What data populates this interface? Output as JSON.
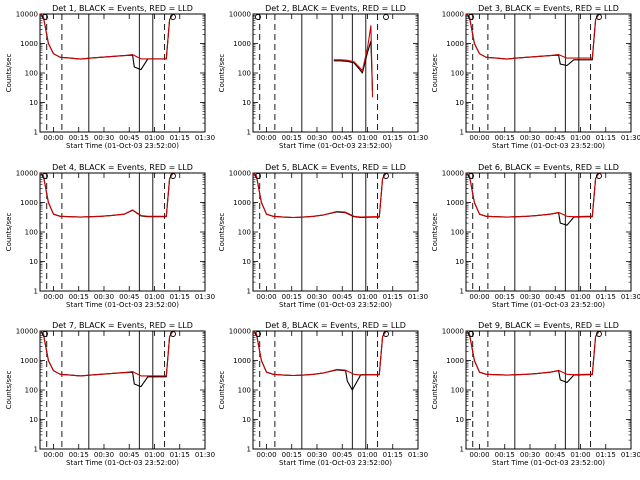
{
  "chart_data": {
    "type": "line",
    "layout": "3x3 grid",
    "xlabel": "Start Time (01-Oct-03 23:52:00)",
    "ylabel": "Counts/sec",
    "y_scale": "log",
    "ylim": [
      1,
      10000
    ],
    "y_ticks": [
      "1",
      "10",
      "100",
      "1000",
      "10000"
    ],
    "xlim_minutes": [
      0,
      98
    ],
    "x_ticks": [
      {
        "minute": 8,
        "label": "00:00"
      },
      {
        "minute": 23,
        "label": "00:15"
      },
      {
        "minute": 38,
        "label": "00:30"
      },
      {
        "minute": 53,
        "label": "00:45"
      },
      {
        "minute": 68,
        "label": "01:00"
      },
      {
        "minute": 83,
        "label": "01:15"
      },
      {
        "minute": 98,
        "label": "01:30"
      }
    ],
    "series_legend": {
      "black": "Events",
      "red": "LLD"
    },
    "colors": {
      "events": "#000000",
      "lld": "#cc0000"
    },
    "panels": [
      {
        "title": "Det 1, BLACK = Events, RED = LLD",
        "dip": true,
        "dashed_minutes": [
          4,
          13,
          74
        ],
        "solid_minutes": [
          29,
          59,
          67
        ],
        "saa_markers": true,
        "series": [
          {
            "name": "Events",
            "x": [
              0,
              2,
              5,
              8,
              12,
              18,
              24,
              30,
              36,
              42,
              50,
              55,
              56,
              60,
              64,
              72,
              75,
              77,
              79
            ],
            "y": [
              10000,
              8000,
              1000,
              450,
              340,
              320,
              295,
              320,
              340,
              360,
              390,
              400,
              160,
              130,
              300,
              300,
              300,
              6500,
              10000
            ]
          },
          {
            "name": "LLD",
            "x": [
              0,
              2,
              5,
              8,
              12,
              18,
              24,
              30,
              36,
              42,
              50,
              55,
              60,
              64,
              72,
              75,
              77,
              79
            ],
            "y": [
              10000,
              8000,
              1000,
              450,
              340,
              320,
              295,
              320,
              340,
              360,
              390,
              420,
              300,
              300,
              300,
              300,
              6500,
              10000
            ]
          }
        ]
      },
      {
        "title": "Det 2, BLACK = Events, RED = LLD",
        "dip": false,
        "dashed_minutes": [
          4,
          13,
          74
        ],
        "solid_minutes": [
          29,
          47,
          59,
          67
        ],
        "saa_markers": true,
        "series": [
          {
            "name": "Events",
            "x": [
              48,
              52,
              56,
              60,
              63,
              65,
              68,
              70,
              71
            ],
            "y": [
              260,
              260,
              250,
              220,
              140,
              100,
              500,
              1200,
              25
            ]
          },
          {
            "name": "LLD",
            "x": [
              48,
              52,
              56,
              60,
              63,
              65,
              68,
              70,
              71
            ],
            "y": [
              280,
              280,
              270,
              240,
              160,
              120,
              700,
              4000,
              15
            ]
          }
        ]
      },
      {
        "title": "Det 3, BLACK = Events, RED = LLD",
        "dip": true,
        "dashed_minutes": [
          4,
          13,
          74
        ],
        "solid_minutes": [
          29,
          59,
          67
        ],
        "saa_markers": true,
        "series": [
          {
            "name": "Events",
            "x": [
              0,
              2,
              5,
              8,
              12,
              18,
              24,
              30,
              36,
              42,
              50,
              55,
              56,
              60,
              64,
              72,
              75,
              77,
              79
            ],
            "y": [
              10000,
              8000,
              1000,
              450,
              340,
              320,
              295,
              320,
              340,
              360,
              390,
              400,
              200,
              180,
              280,
              280,
              280,
              6500,
              10000
            ]
          },
          {
            "name": "LLD",
            "x": [
              0,
              2,
              5,
              8,
              12,
              18,
              24,
              30,
              36,
              42,
              50,
              55,
              60,
              64,
              72,
              75,
              77,
              79
            ],
            "y": [
              10000,
              8000,
              1000,
              450,
              340,
              320,
              295,
              320,
              340,
              360,
              390,
              420,
              320,
              320,
              320,
              320,
              6500,
              10000
            ]
          }
        ]
      },
      {
        "title": "Det 4, BLACK = Events, RED = LLD",
        "dip": false,
        "dashed_minutes": [
          4,
          13,
          74
        ],
        "solid_minutes": [
          29,
          59,
          67
        ],
        "saa_markers": true,
        "series": [
          {
            "name": "Events",
            "x": [
              0,
              2,
              5,
              8,
              12,
              18,
              24,
              30,
              36,
              42,
              50,
              55,
              60,
              64,
              72,
              75,
              77,
              79
            ],
            "y": [
              10000,
              8000,
              1000,
              400,
              340,
              330,
              320,
              330,
              340,
              360,
              400,
              550,
              350,
              330,
              330,
              330,
              6500,
              10000
            ]
          },
          {
            "name": "LLD",
            "x": [
              0,
              2,
              5,
              8,
              12,
              18,
              24,
              30,
              36,
              42,
              50,
              55,
              60,
              64,
              72,
              75,
              77,
              79
            ],
            "y": [
              10000,
              8000,
              1000,
              400,
              340,
              330,
              320,
              330,
              340,
              360,
              400,
              560,
              360,
              340,
              340,
              340,
              6500,
              10000
            ]
          }
        ]
      },
      {
        "title": "Det 5, BLACK = Events, RED = LLD",
        "dip": false,
        "dashed_minutes": [
          4,
          13,
          74
        ],
        "solid_minutes": [
          29,
          59,
          67
        ],
        "saa_markers": true,
        "series": [
          {
            "name": "Events",
            "x": [
              0,
              2,
              5,
              8,
              12,
              18,
              24,
              30,
              36,
              42,
              50,
              55,
              60,
              64,
              72,
              75,
              77,
              79
            ],
            "y": [
              10000,
              8000,
              1000,
              400,
              340,
              320,
              310,
              320,
              340,
              380,
              480,
              450,
              330,
              310,
              320,
              320,
              6500,
              10000
            ]
          },
          {
            "name": "LLD",
            "x": [
              0,
              2,
              5,
              8,
              12,
              18,
              24,
              30,
              36,
              42,
              50,
              55,
              60,
              64,
              72,
              75,
              77,
              79
            ],
            "y": [
              10000,
              8000,
              1000,
              400,
              340,
              320,
              310,
              320,
              340,
              380,
              500,
              470,
              340,
              320,
              330,
              330,
              6500,
              10000
            ]
          }
        ]
      },
      {
        "title": "Det 6, BLACK = Events, RED = LLD",
        "dip": true,
        "dashed_minutes": [
          4,
          13,
          74
        ],
        "solid_minutes": [
          29,
          59,
          67
        ],
        "saa_markers": true,
        "series": [
          {
            "name": "Events",
            "x": [
              0,
              2,
              5,
              8,
              12,
              18,
              24,
              30,
              36,
              42,
              50,
              55,
              56,
              60,
              64,
              72,
              75,
              77,
              79
            ],
            "y": [
              10000,
              8000,
              1000,
              400,
              340,
              330,
              320,
              330,
              340,
              360,
              400,
              450,
              200,
              170,
              320,
              330,
              330,
              6500,
              10000
            ]
          },
          {
            "name": "LLD",
            "x": [
              0,
              2,
              5,
              8,
              12,
              18,
              24,
              30,
              36,
              42,
              50,
              55,
              60,
              64,
              72,
              75,
              77,
              79
            ],
            "y": [
              10000,
              8000,
              1000,
              400,
              340,
              330,
              320,
              330,
              340,
              360,
              400,
              460,
              340,
              330,
              340,
              340,
              6500,
              10000
            ]
          }
        ]
      },
      {
        "title": "Det 7, BLACK = Events, RED = LLD",
        "dip": true,
        "dashed_minutes": [
          4,
          13,
          74
        ],
        "solid_minutes": [
          29,
          59,
          67
        ],
        "saa_markers": true,
        "series": [
          {
            "name": "Events",
            "x": [
              0,
              2,
              5,
              8,
              12,
              18,
              24,
              30,
              36,
              42,
              50,
              55,
              56,
              60,
              64,
              72,
              75,
              77,
              79
            ],
            "y": [
              10000,
              8000,
              1000,
              450,
              340,
              320,
              300,
              320,
              340,
              360,
              390,
              400,
              160,
              130,
              280,
              280,
              280,
              6500,
              10000
            ]
          },
          {
            "name": "LLD",
            "x": [
              0,
              2,
              5,
              8,
              12,
              18,
              24,
              30,
              36,
              42,
              50,
              55,
              60,
              64,
              72,
              75,
              77,
              79
            ],
            "y": [
              10000,
              8000,
              1000,
              450,
              340,
              320,
              300,
              320,
              340,
              360,
              390,
              420,
              300,
              300,
              300,
              300,
              6500,
              10000
            ]
          }
        ]
      },
      {
        "title": "Det 8, BLACK = Events, RED = LLD",
        "dip": true,
        "dashed_minutes": [
          4,
          13,
          74
        ],
        "solid_minutes": [
          29,
          59,
          67
        ],
        "saa_markers": true,
        "series": [
          {
            "name": "Events",
            "x": [
              0,
              2,
              5,
              8,
              12,
              18,
              24,
              30,
              36,
              42,
              50,
              55,
              56,
              59,
              64,
              72,
              75,
              77,
              79
            ],
            "y": [
              10000,
              8000,
              1000,
              400,
              340,
              320,
              310,
              320,
              340,
              380,
              480,
              450,
              200,
              100,
              330,
              330,
              330,
              6500,
              10000
            ]
          },
          {
            "name": "LLD",
            "x": [
              0,
              2,
              5,
              8,
              12,
              18,
              24,
              30,
              36,
              42,
              50,
              55,
              60,
              64,
              72,
              75,
              77,
              79
            ],
            "y": [
              10000,
              8000,
              1000,
              400,
              340,
              320,
              310,
              320,
              340,
              380,
              500,
              470,
              340,
              320,
              330,
              330,
              6500,
              10000
            ]
          }
        ]
      },
      {
        "title": "Det 9, BLACK = Events, RED = LLD",
        "dip": true,
        "dashed_minutes": [
          4,
          13,
          74
        ],
        "solid_minutes": [
          29,
          59,
          67
        ],
        "saa_markers": true,
        "series": [
          {
            "name": "Events",
            "x": [
              0,
              2,
              5,
              8,
              12,
              18,
              24,
              30,
              36,
              42,
              50,
              55,
              56,
              60,
              64,
              72,
              75,
              77,
              79
            ],
            "y": [
              10000,
              8000,
              1000,
              400,
              340,
              330,
              320,
              330,
              340,
              360,
              400,
              450,
              220,
              180,
              320,
              330,
              330,
              6500,
              10000
            ]
          },
          {
            "name": "LLD",
            "x": [
              0,
              2,
              5,
              8,
              12,
              18,
              24,
              30,
              36,
              42,
              50,
              55,
              60,
              64,
              72,
              75,
              77,
              79
            ],
            "y": [
              10000,
              8000,
              1000,
              400,
              340,
              330,
              320,
              330,
              340,
              360,
              400,
              460,
              340,
              330,
              340,
              340,
              6500,
              10000
            ]
          }
        ]
      }
    ]
  }
}
